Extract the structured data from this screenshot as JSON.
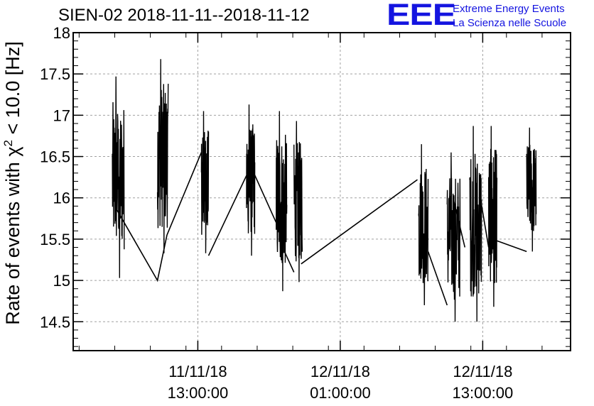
{
  "header": {
    "title": "SIEN-02 2018-11-11--2018-11-12",
    "logo": "EEE",
    "logo_line1": "Extreme Energy Events",
    "logo_line2": "La Scienza nelle Scuole"
  },
  "colors": {
    "line": "#000000",
    "logo": "#1414e0",
    "grid": "#a0a0a0"
  },
  "chart_data": {
    "type": "line",
    "title": "SIEN-02 2018-11-11--2018-11-12",
    "ylabel_main": "Rate of events with χ",
    "ylabel_sup": "2",
    "ylabel_rest": " < 10.0 [Hz]",
    "xlabel": "",
    "ylim": [
      14.15,
      18.0
    ],
    "y_ticks": [
      14.5,
      15,
      15.5,
      16,
      16.5,
      17,
      17.5,
      18
    ],
    "y_tick_labels": [
      "14.5",
      "15",
      "15.5",
      "16",
      "16.5",
      "17",
      "17.5",
      "18"
    ],
    "x_unit": "hours since 2018-11-11 00:00",
    "xlim": [
      2.5,
      44.4
    ],
    "x_ticks": [
      13,
      25,
      37
    ],
    "x_tick_labels": [
      [
        "11/11/18",
        "13:00:00"
      ],
      [
        "12/11/18",
        "01:00:00"
      ],
      [
        "12/11/18",
        "13:00:00"
      ]
    ],
    "grid": true,
    "series": [
      {
        "name": "",
        "bursts": [
          {
            "start": 5.8,
            "end": 6.8,
            "min": 15.03,
            "max": 17.47
          },
          {
            "start": 9.6,
            "end": 10.5,
            "min": 15.33,
            "max": 17.68
          },
          {
            "start": 13.3,
            "end": 13.9,
            "min": 15.33,
            "max": 17.05
          },
          {
            "start": 17.1,
            "end": 17.8,
            "min": 15.3,
            "max": 17.13
          },
          {
            "start": 19.6,
            "end": 20.5,
            "min": 14.87,
            "max": 17.05
          },
          {
            "start": 21.1,
            "end": 21.8,
            "min": 14.98,
            "max": 16.93
          },
          {
            "start": 31.6,
            "end": 32.4,
            "min": 14.7,
            "max": 16.65
          },
          {
            "start": 34.0,
            "end": 35.1,
            "min": 14.5,
            "max": 16.55
          },
          {
            "start": 35.9,
            "end": 36.9,
            "min": 14.5,
            "max": 16.87
          },
          {
            "start": 37.5,
            "end": 38.2,
            "min": 14.68,
            "max": 16.87
          },
          {
            "start": 40.7,
            "end": 41.5,
            "min": 15.35,
            "max": 16.85
          }
        ],
        "connectors": [
          {
            "x": [
              6.2,
              9.6,
              10.4
            ],
            "y": [
              15.85,
              15.0,
              15.55
            ]
          },
          {
            "x": [
              10.4,
              13.3
            ],
            "y": [
              15.55,
              16.55
            ]
          },
          {
            "x": [
              13.9,
              17.1
            ],
            "y": [
              15.3,
              16.27
            ]
          },
          {
            "x": [
              17.5,
              19.6
            ],
            "y": [
              16.37,
              15.7
            ]
          },
          {
            "x": [
              20.3,
              21.1
            ],
            "y": [
              15.35,
              15.1
            ]
          },
          {
            "x": [
              21.7,
              31.5
            ],
            "y": [
              15.2,
              16.22
            ]
          },
          {
            "x": [
              32.4,
              34.0
            ],
            "y": [
              15.35,
              14.7
            ]
          },
          {
            "x": [
              34.5,
              35.5
            ],
            "y": [
              16.0,
              15.4
            ]
          },
          {
            "x": [
              36.8,
              37.5
            ],
            "y": [
              16.0,
              15.4
            ]
          },
          {
            "x": [
              38.2,
              40.7
            ],
            "y": [
              15.48,
              15.35
            ]
          }
        ]
      }
    ]
  }
}
